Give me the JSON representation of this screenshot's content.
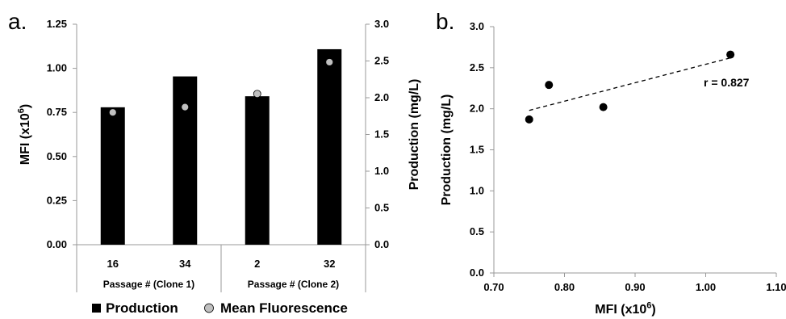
{
  "panels": {
    "a": "a.",
    "b": "b."
  },
  "chart_data": [
    {
      "type": "bar",
      "panel": "a",
      "categories": [
        "16",
        "34",
        "2",
        "32"
      ],
      "groups": [
        {
          "label": "Passage # (Clone 1)",
          "categories": [
            "16",
            "34"
          ]
        },
        {
          "label": "Passage # (Clone 2)",
          "categories": [
            "2",
            "32"
          ]
        }
      ],
      "series": [
        {
          "name": "Production",
          "kind": "bar",
          "axis": "right",
          "values": [
            1.87,
            2.29,
            2.02,
            2.66
          ]
        },
        {
          "name": "Mean Fluorescence",
          "kind": "point",
          "axis": "left",
          "values": [
            0.75,
            0.78,
            0.855,
            1.035
          ]
        }
      ],
      "ylabel_left": "MFI (x10⁶)",
      "ylabel_right": "Production (mg/L)",
      "ylim_left": [
        0,
        1.25
      ],
      "ylim_right": [
        0,
        3.0
      ],
      "yticks_left": [
        "0.00",
        "0.25",
        "0.50",
        "0.75",
        "1.00",
        "1.25"
      ],
      "yticks_right": [
        "0.0",
        "0.5",
        "1.0",
        "1.5",
        "2.0",
        "2.5",
        "3.0"
      ],
      "legend": [
        {
          "label": "Production",
          "marker": "square",
          "color": "#000000"
        },
        {
          "label": "Mean Fluorescence",
          "marker": "circle",
          "color": "#c0c0c0"
        }
      ],
      "legend_placement": "bottom",
      "grid": false,
      "colors": {
        "bar": "#000000",
        "point_fill": "#c0c0c0",
        "point_stroke": "#000000"
      }
    },
    {
      "type": "scatter",
      "panel": "b",
      "x": [
        0.75,
        0.778,
        0.855,
        1.035
      ],
      "y": [
        1.87,
        2.29,
        2.02,
        2.66
      ],
      "xlabel": "MFI (x10⁶)",
      "ylabel": "Production (mg/L)",
      "xlim": [
        0.7,
        1.1
      ],
      "ylim": [
        0.0,
        3.0
      ],
      "xticks": [
        "0.70",
        "0.80",
        "0.90",
        "1.00",
        "1.10"
      ],
      "yticks": [
        "0.0",
        "0.5",
        "1.0",
        "1.5",
        "2.0",
        "2.5",
        "3.0"
      ],
      "trendline": {
        "style": "dashed",
        "from": [
          0.75,
          1.98
        ],
        "to": [
          1.035,
          2.62
        ]
      },
      "annotation": "r = 0.827",
      "grid": false,
      "colors": {
        "marker": "#000000",
        "trendline": "#000000"
      }
    }
  ]
}
